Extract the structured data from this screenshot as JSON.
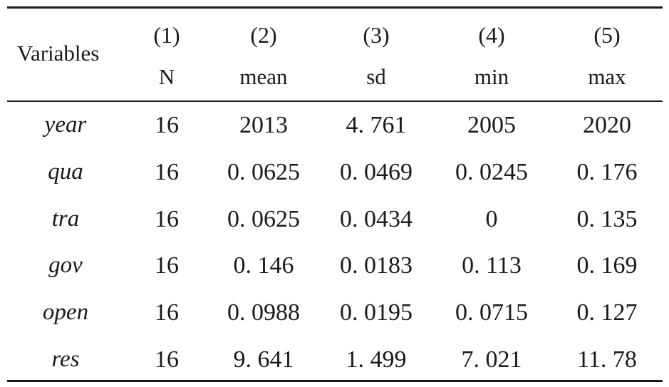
{
  "table": {
    "variables_header": "Variables",
    "columns": [
      {
        "number": "(1)",
        "label": "N"
      },
      {
        "number": "(2)",
        "label": "mean"
      },
      {
        "number": "(3)",
        "label": "sd"
      },
      {
        "number": "(4)",
        "label": "min"
      },
      {
        "number": "(5)",
        "label": "max"
      }
    ],
    "rows": [
      {
        "name": "year",
        "values": [
          "16",
          "2013",
          "4. 761",
          "2005",
          "2020"
        ]
      },
      {
        "name": "qua",
        "values": [
          "16",
          "0. 0625",
          "0. 0469",
          "0. 0245",
          "0. 176"
        ]
      },
      {
        "name": "tra",
        "values": [
          "16",
          "0. 0625",
          "0. 0434",
          "0",
          "0. 135"
        ]
      },
      {
        "name": "gov",
        "values": [
          "16",
          "0. 146",
          "0. 0183",
          "0. 113",
          "0. 169"
        ]
      },
      {
        "name": "open",
        "values": [
          "16",
          "0. 0988",
          "0. 0195",
          "0. 0715",
          "0. 127"
        ]
      },
      {
        "name": "res",
        "values": [
          "16",
          "9. 641",
          "1. 499",
          "7. 021",
          "11. 78"
        ]
      }
    ]
  }
}
